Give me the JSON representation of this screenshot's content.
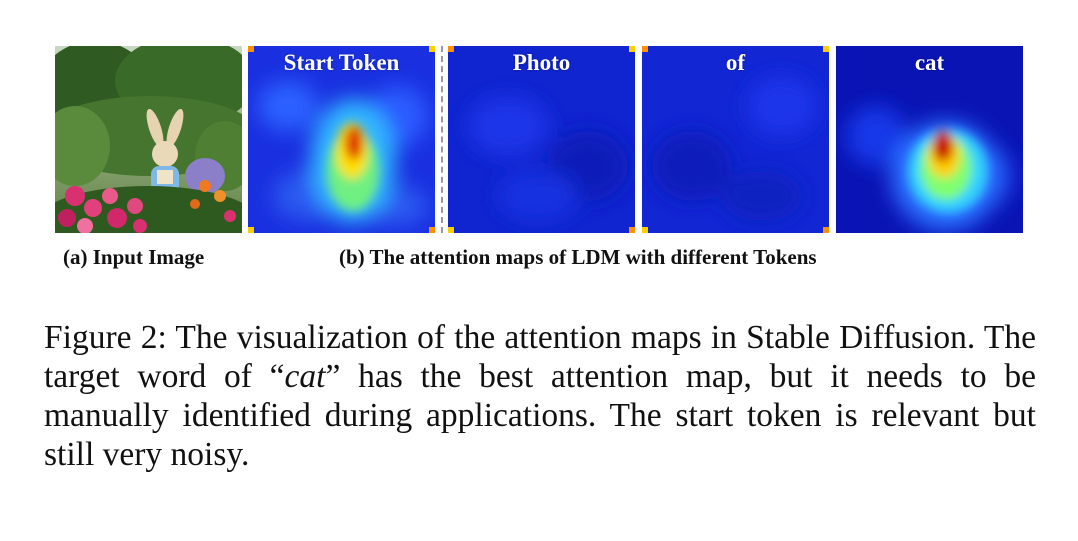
{
  "figure": {
    "panels": [
      {
        "id": "input",
        "kind": "photo",
        "label": ""
      },
      {
        "id": "start",
        "kind": "attention-map",
        "label": "Start Token"
      },
      {
        "id": "photo",
        "kind": "attention-map",
        "label": "Photo"
      },
      {
        "id": "of",
        "kind": "attention-map",
        "label": "of"
      },
      {
        "id": "cat",
        "kind": "attention-map",
        "label": "cat"
      }
    ],
    "subcaption_a": "(a) Input Image",
    "subcaption_b": "(b) The attention maps of LDM with different Tokens"
  },
  "caption": {
    "part1": "Figure 2: The visualization of the attention maps in Stable Diffusion. The target word of “",
    "emph": "cat",
    "part2": "” has the best attention map, but it needs to be manually identified during applications. The start token is relevant but still very noisy."
  },
  "colors": {
    "map_background": "#1428d8",
    "map_deep": "#0a14b4",
    "map_cyan": "#30c8ff",
    "map_green": "#80ff70",
    "map_yellow": "#ffe000",
    "map_red": "#c80000",
    "foliage": "#3f6b2a",
    "flowers": "#d83070"
  }
}
